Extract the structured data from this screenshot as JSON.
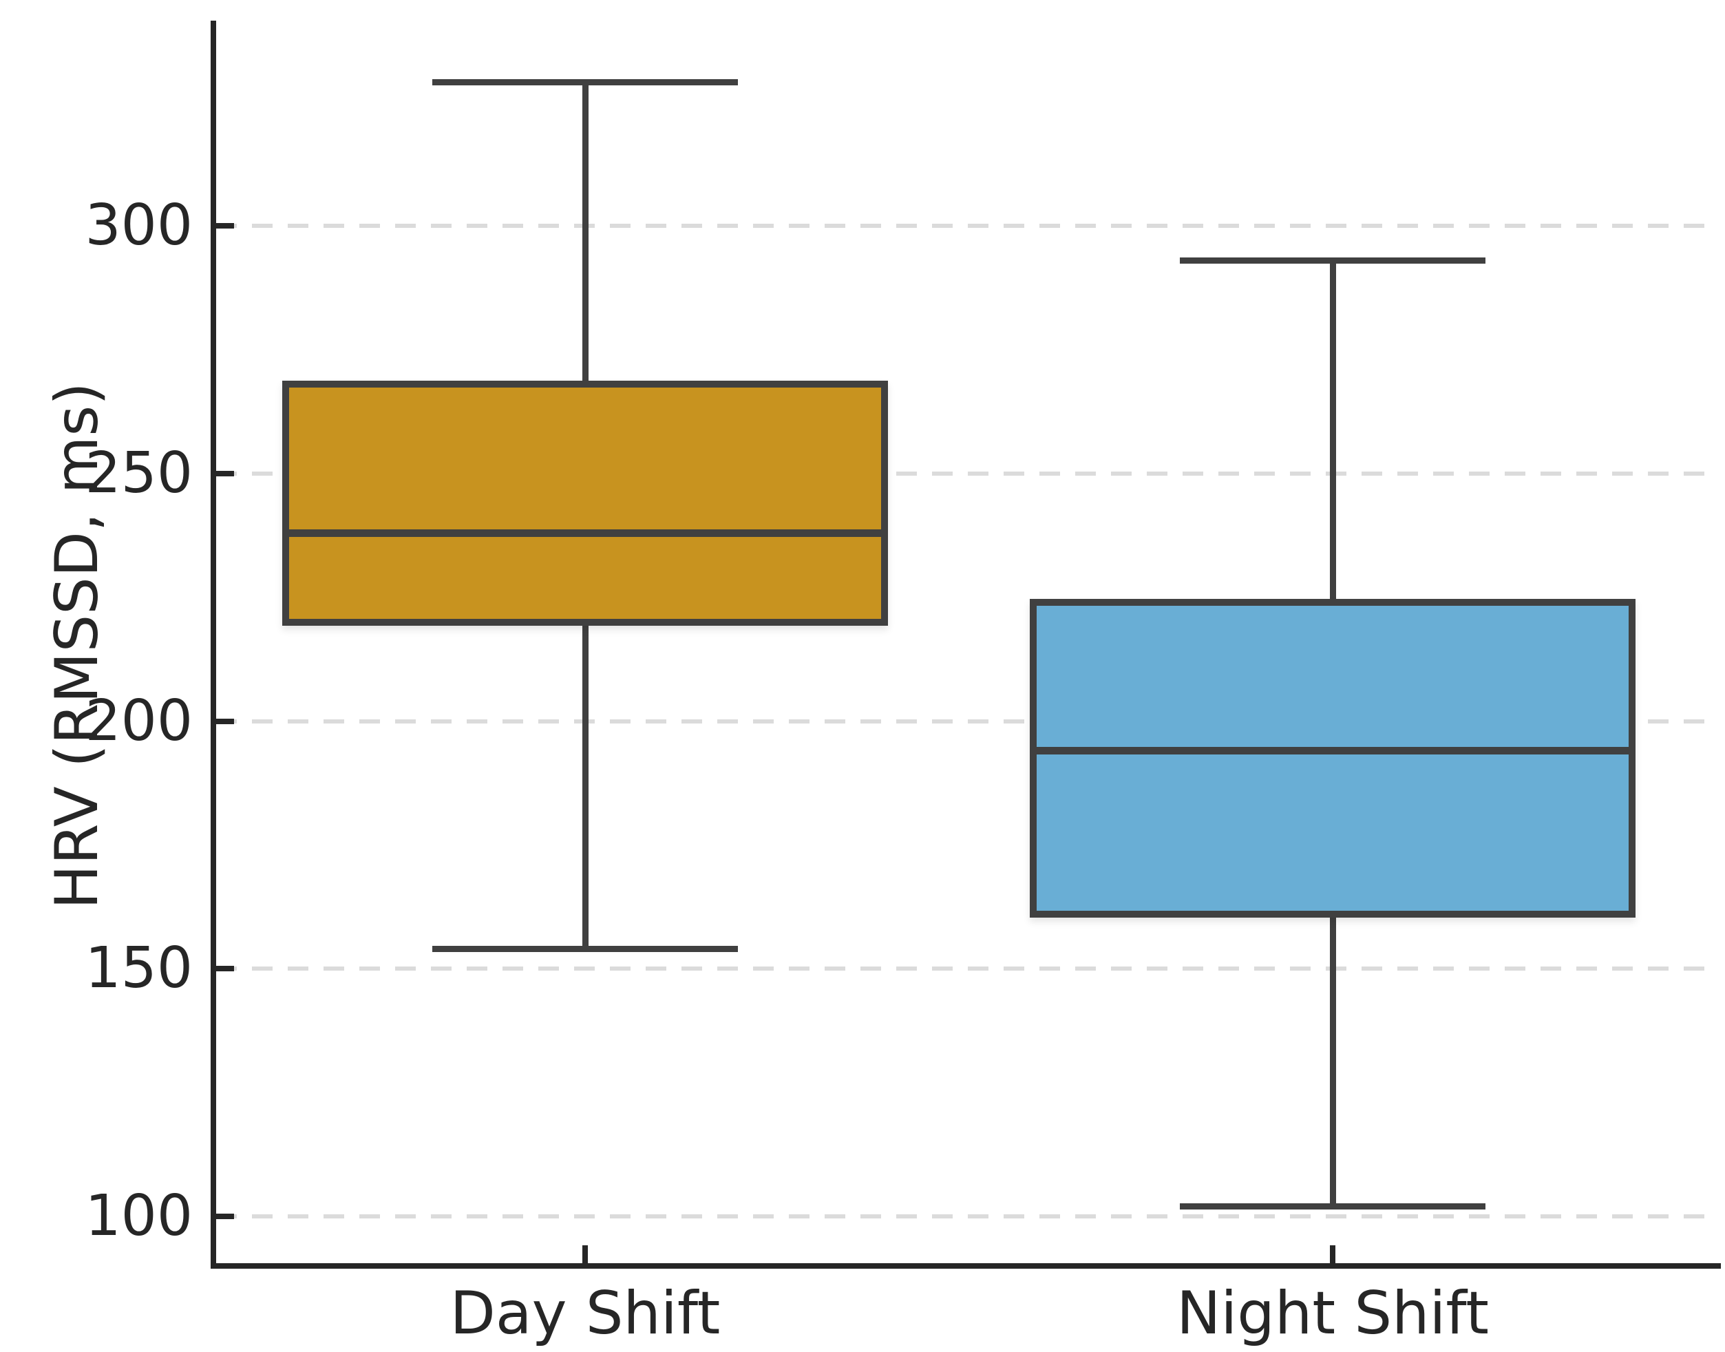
{
  "figure": {
    "background": "#ffffff",
    "text_color": "#262626"
  },
  "chart_data": {
    "type": "boxplot",
    "title": "",
    "xlabel": "",
    "ylabel": "HRV (RMSSD, ms)",
    "categories": [
      "Day Shift",
      "Night Shift"
    ],
    "yticks": [
      100,
      150,
      200,
      250,
      300
    ],
    "ylim": [
      90,
      341
    ],
    "grid": "horizontal-dashed",
    "legend": "none",
    "series": [
      {
        "name": "Day Shift",
        "whisker_low": 154,
        "q1": 220,
        "median": 238,
        "q3": 268,
        "whisker_high": 329,
        "fill_color": "#C8931F"
      },
      {
        "name": "Night Shift",
        "whisker_low": 102,
        "q1": 161,
        "median": 194,
        "q3": 224,
        "whisker_high": 293,
        "fill_color": "#69AED5"
      }
    ],
    "colors": {
      "box_edge": "#404040",
      "whisker": "#404040",
      "median": "#404040",
      "grid": "#dbdbdb",
      "spine": "#262626",
      "tick": "#262626"
    }
  }
}
